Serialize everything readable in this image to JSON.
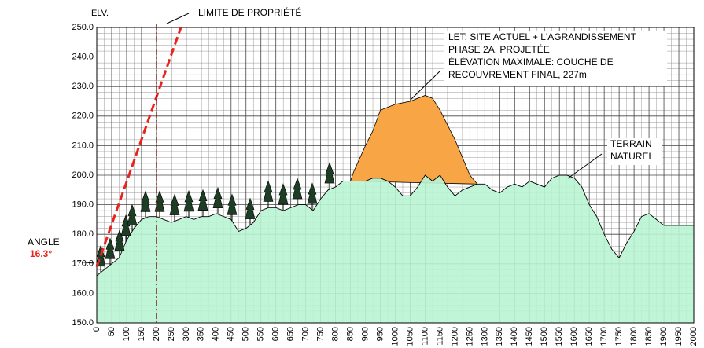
{
  "chart_data": {
    "type": "profile",
    "y_label": "ELV.",
    "xlim": [
      0,
      2000
    ],
    "xticks": [
      0,
      50,
      100,
      150,
      200,
      250,
      300,
      350,
      400,
      450,
      500,
      550,
      600,
      650,
      700,
      750,
      800,
      850,
      900,
      950,
      1000,
      1050,
      1100,
      1150,
      1200,
      1250,
      1300,
      1350,
      1400,
      1450,
      1500,
      1550,
      1600,
      1650,
      1700,
      1750,
      1800,
      1850,
      1900,
      1950,
      2000
    ],
    "ylim": [
      150,
      250
    ],
    "yticks": [
      {
        "value": 150,
        "label": "150.0"
      },
      {
        "value": 160,
        "label": "160.0"
      },
      {
        "value": 170,
        "label": "170.0"
      },
      {
        "value": 180,
        "label": "180.0"
      },
      {
        "value": 190,
        "label": "190.0"
      },
      {
        "value": 200,
        "label": "200.0"
      },
      {
        "value": 210,
        "label": "210.0"
      },
      {
        "value": 220,
        "label": "220.0"
      },
      {
        "value": 230,
        "label": "230.0"
      },
      {
        "value": 240,
        "label": "240.0"
      },
      {
        "value": 250,
        "label": "250.0"
      }
    ],
    "grid": true,
    "terrain": {
      "color": "#b9f4d3",
      "x": [
        0,
        25,
        50,
        75,
        100,
        125,
        150,
        175,
        200,
        225,
        250,
        275,
        300,
        325,
        350,
        375,
        400,
        425,
        450,
        475,
        500,
        525,
        550,
        575,
        600,
        625,
        650,
        675,
        700,
        725,
        750,
        775,
        800,
        825,
        850,
        875,
        900,
        925,
        950,
        975,
        1000,
        1025,
        1050,
        1075,
        1100,
        1125,
        1150,
        1175,
        1200,
        1225,
        1250,
        1275,
        1300,
        1325,
        1350,
        1375,
        1400,
        1425,
        1450,
        1475,
        1500,
        1525,
        1550,
        1575,
        1600,
        1625,
        1650,
        1675,
        1700,
        1725,
        1750,
        1775,
        1800,
        1825,
        1850,
        1875,
        1900,
        1950,
        2000
      ],
      "values": [
        166,
        168,
        170,
        172,
        178,
        182,
        185,
        186,
        186,
        185,
        184,
        185,
        186,
        185,
        186,
        186,
        187,
        186,
        185,
        181,
        182,
        184,
        188,
        189,
        189,
        188,
        189,
        190,
        190,
        188,
        192,
        195,
        196,
        198,
        198,
        198,
        198,
        199,
        199,
        198,
        196,
        193,
        193,
        196,
        200,
        198,
        200,
        196,
        193,
        195,
        196,
        197,
        197,
        195,
        194,
        196,
        197,
        196,
        198,
        197,
        196,
        199,
        200,
        200,
        199,
        196,
        190,
        186,
        180,
        175,
        172,
        177,
        181,
        186,
        187,
        185,
        183,
        183,
        183
      ]
    },
    "landfill": {
      "color": "#f7a545",
      "x": [
        850,
        860,
        900,
        925,
        950,
        1000,
        1050,
        1100,
        1125,
        1150,
        1200,
        1250,
        1275
      ],
      "values": [
        198,
        201,
        210,
        215,
        222,
        224,
        225,
        227,
        226,
        222,
        212,
        200,
        197
      ]
    },
    "angle_line": {
      "color": "#e8231c",
      "x": [
        0,
        282
      ],
      "values": [
        169,
        250
      ]
    },
    "property_line": {
      "x": 200,
      "label": "LIMITE DE PROPRIÉTÉ"
    },
    "landfill_note": [
      "LET: SITE ACTUEL + L'AGRANDISSEMENT",
      "PHASE 2A, PROJETÉE",
      "ÉLÉVATION MAXIMALE: COUCHE DE",
      "RECOUVREMENT FINAL, 227m"
    ],
    "terrain_note": [
      "TERRAIN",
      "NATUREL"
    ],
    "angle_label": "ANGLE",
    "angle_value": "16.3°"
  }
}
